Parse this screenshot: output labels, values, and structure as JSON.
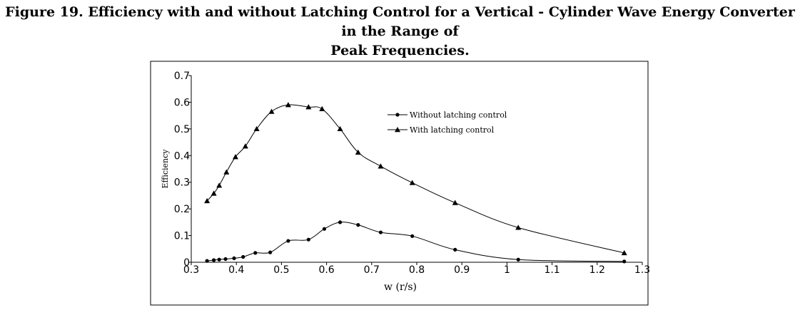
{
  "figure": {
    "title_line1": "Figure 19. Efficiency with and without Latching Control for a Vertical - Cylinder Wave Energy Converter in the Range of",
    "title_line2": "Peak Frequencies."
  },
  "chart_data": {
    "type": "line",
    "xlabel": "w (r/s)",
    "ylabel": "Efficiency",
    "xlim": [
      0.3,
      1.3
    ],
    "ylim": [
      0,
      0.7
    ],
    "xticks": [
      0.3,
      0.4,
      0.5,
      0.6,
      0.7,
      0.8,
      0.9,
      1,
      1.1,
      1.2,
      1.3
    ],
    "xtick_labels": [
      "0.3",
      "0.4",
      "0.5",
      "0.6",
      "0.7",
      "0.8",
      "0.9",
      "1",
      "1.1",
      "1.2",
      "1.3"
    ],
    "yticks": [
      0,
      0.1,
      0.2,
      0.3,
      0.4,
      0.5,
      0.6,
      0.7
    ],
    "ytick_labels": [
      "0",
      "0.1",
      "0.2",
      "0.3",
      "0.4",
      "0.5",
      "0.6",
      "0.7"
    ],
    "grid": false,
    "legend_position": "upper-right",
    "series": [
      {
        "name": "Without latching control",
        "marker": "circle",
        "color": "#000000",
        "x": [
          0.335,
          0.35,
          0.362,
          0.376,
          0.395,
          0.415,
          0.442,
          0.475,
          0.515,
          0.56,
          0.595,
          0.63,
          0.67,
          0.72,
          0.79,
          0.885,
          1.025,
          1.26
        ],
        "y": [
          0.005,
          0.008,
          0.01,
          0.012,
          0.015,
          0.02,
          0.035,
          0.037,
          0.08,
          0.085,
          0.125,
          0.15,
          0.14,
          0.112,
          0.098,
          0.047,
          0.01,
          0.003
        ]
      },
      {
        "name": "With latching control",
        "marker": "triangle",
        "color": "#000000",
        "x": [
          0.335,
          0.35,
          0.362,
          0.378,
          0.398,
          0.42,
          0.445,
          0.478,
          0.515,
          0.56,
          0.59,
          0.63,
          0.67,
          0.72,
          0.79,
          0.885,
          1.025,
          1.26
        ],
        "y": [
          0.23,
          0.258,
          0.288,
          0.338,
          0.395,
          0.435,
          0.5,
          0.565,
          0.59,
          0.582,
          0.575,
          0.5,
          0.412,
          0.36,
          0.298,
          0.223,
          0.13,
          0.035
        ]
      }
    ]
  }
}
